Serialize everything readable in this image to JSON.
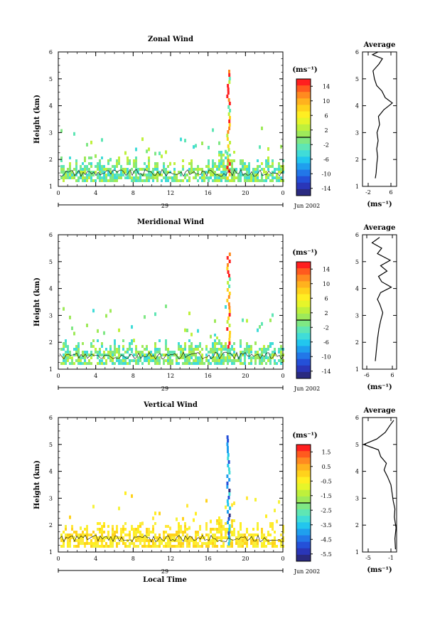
{
  "figure": {
    "date_label": "Jun 2002",
    "day_label": "29",
    "x_axis_label": "Local Time",
    "y_axis_label": "Height (km)",
    "cbar_unit": "(ms⁻¹)",
    "avg_unit": "(ms⁻¹)",
    "avg_title": "Average"
  },
  "chart_data": [
    {
      "type": "heatmap",
      "title": "Zonal Wind",
      "xlabel": "",
      "ylabel": "Height (km)",
      "x_ticks": [
        "0",
        "4",
        "8",
        "12",
        "16",
        "20",
        "0"
      ],
      "y_ticks": [
        "1",
        "2",
        "3",
        "4",
        "5",
        "6"
      ],
      "xlim": [
        0,
        24
      ],
      "ylim": [
        1,
        6
      ],
      "colorbar": {
        "ticks": [
          "14",
          "10",
          "6",
          "2",
          "-2",
          "-6",
          "-10",
          "-14"
        ],
        "range": [
          -16,
          16
        ]
      },
      "average": {
        "title": "Average",
        "x_ticks": [
          "-2",
          "6"
        ],
        "xlim": [
          -4,
          8
        ],
        "ylim": [
          1,
          6
        ],
        "profile": [
          [
            0.5,
            1.3
          ],
          [
            0.8,
            1.5
          ],
          [
            1.0,
            1.8
          ],
          [
            1.3,
            2.1
          ],
          [
            1.0,
            2.4
          ],
          [
            1.5,
            2.7
          ],
          [
            1.1,
            3.0
          ],
          [
            2.0,
            3.3
          ],
          [
            1.6,
            3.6
          ],
          [
            3.5,
            3.85
          ],
          [
            6.5,
            4.1
          ],
          [
            4.0,
            4.3
          ],
          [
            2.8,
            4.55
          ],
          [
            1.0,
            4.75
          ],
          [
            0.2,
            5.0
          ],
          [
            -0.3,
            5.3
          ],
          [
            1.8,
            5.55
          ],
          [
            3.0,
            5.75
          ],
          [
            -0.5,
            5.9
          ],
          [
            1.5,
            6.0
          ]
        ]
      }
    },
    {
      "type": "heatmap",
      "title": "Meridional Wind",
      "xlabel": "",
      "ylabel": "Height (km)",
      "x_ticks": [
        "0",
        "4",
        "8",
        "12",
        "16",
        "20",
        "0"
      ],
      "y_ticks": [
        "1",
        "2",
        "3",
        "4",
        "5",
        "6"
      ],
      "xlim": [
        0,
        24
      ],
      "ylim": [
        1,
        6
      ],
      "colorbar": {
        "ticks": [
          "14",
          "10",
          "6",
          "2",
          "-2",
          "-6",
          "-10",
          "-14"
        ],
        "range": [
          -16,
          16
        ]
      },
      "average": {
        "title": "Average",
        "x_ticks": [
          "-6",
          "6"
        ],
        "xlim": [
          -8,
          8
        ],
        "ylim": [
          1,
          6
        ],
        "profile": [
          [
            -2.0,
            1.3
          ],
          [
            -1.5,
            1.7
          ],
          [
            -1.0,
            2.1
          ],
          [
            -0.3,
            2.5
          ],
          [
            0.5,
            2.8
          ],
          [
            1.5,
            3.1
          ],
          [
            0.2,
            3.4
          ],
          [
            -1.0,
            3.6
          ],
          [
            0.5,
            3.85
          ],
          [
            5.5,
            4.05
          ],
          [
            1.0,
            4.25
          ],
          [
            -0.5,
            4.45
          ],
          [
            3.5,
            4.65
          ],
          [
            0.5,
            4.85
          ],
          [
            5.0,
            5.05
          ],
          [
            -1.0,
            5.3
          ],
          [
            1.0,
            5.5
          ],
          [
            -3.5,
            5.7
          ],
          [
            0.0,
            5.9
          ]
        ]
      }
    },
    {
      "type": "heatmap",
      "title": "Vertical Wind",
      "xlabel": "Local Time",
      "ylabel": "Height (km)",
      "x_ticks": [
        "0",
        "4",
        "8",
        "12",
        "16",
        "20",
        "0"
      ],
      "y_ticks": [
        "1",
        "2",
        "3",
        "4",
        "5",
        "6"
      ],
      "xlim": [
        0,
        24
      ],
      "ylim": [
        1,
        6
      ],
      "colorbar": {
        "ticks": [
          "1.5",
          "0.5",
          "-0.5",
          "-1.5",
          "-2.5",
          "-3.5",
          "-4.5",
          "-5.5"
        ],
        "range": [
          -6,
          2
        ]
      },
      "average": {
        "title": "Average",
        "x_ticks": [
          "-5",
          "-1"
        ],
        "xlim": [
          -6,
          0
        ],
        "ylim": [
          1,
          6
        ],
        "profile": [
          [
            -0.2,
            1.1
          ],
          [
            -0.3,
            1.5
          ],
          [
            -0.1,
            1.9
          ],
          [
            -0.4,
            2.3
          ],
          [
            -0.3,
            2.6
          ],
          [
            -0.6,
            2.9
          ],
          [
            -0.8,
            3.2
          ],
          [
            -1.0,
            3.5
          ],
          [
            -1.6,
            3.8
          ],
          [
            -2.2,
            4.05
          ],
          [
            -1.8,
            4.3
          ],
          [
            -2.8,
            4.55
          ],
          [
            -3.2,
            4.8
          ],
          [
            -5.8,
            5.0
          ],
          [
            -3.5,
            5.2
          ],
          [
            -2.0,
            5.45
          ],
          [
            -1.2,
            5.7
          ],
          [
            -0.5,
            5.9
          ]
        ]
      }
    }
  ]
}
